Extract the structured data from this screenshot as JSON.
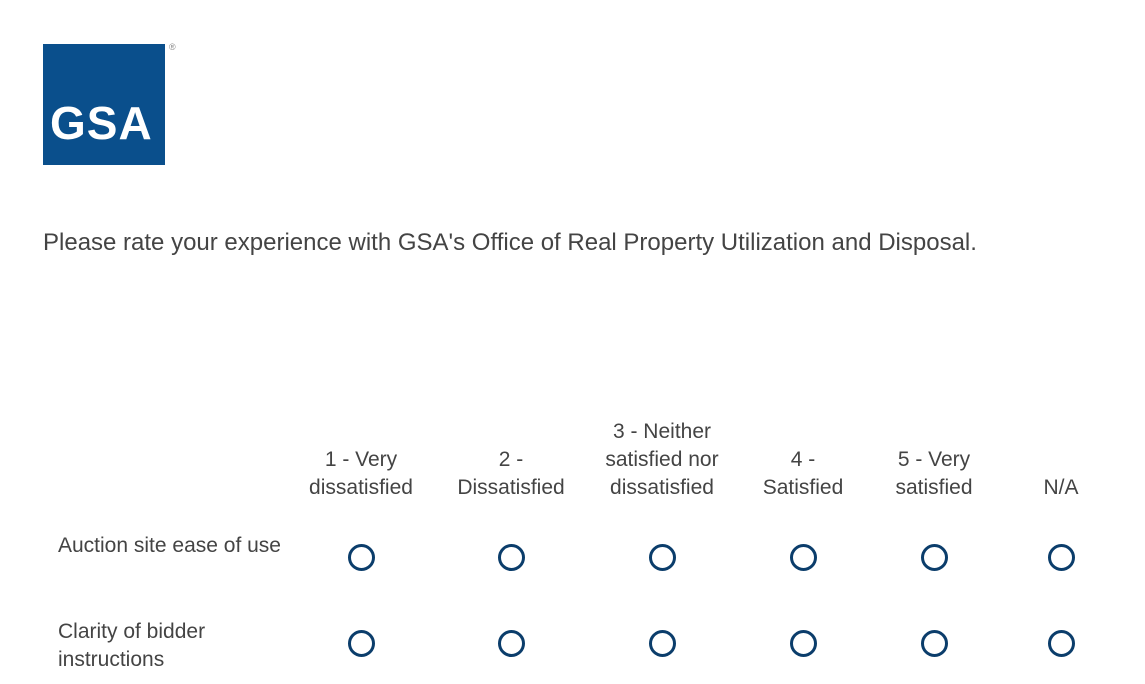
{
  "logo": {
    "text": "GSA",
    "registered": "®",
    "color": "#0a4f8c"
  },
  "question": "Please rate your experience with GSA's Office of Real Property Utilization and Disposal.",
  "columns": [
    "1 - Very dissatisfied",
    "2 - Dissatisfied",
    "3 - Neither satisfied nor dissatisfied",
    "4 - Satisfied",
    "5 - Very satisfied",
    "N/A"
  ],
  "rows": [
    "Auction site ease of use",
    "Clarity of bidder instructions"
  ],
  "radio_color": "#0b3d6b"
}
